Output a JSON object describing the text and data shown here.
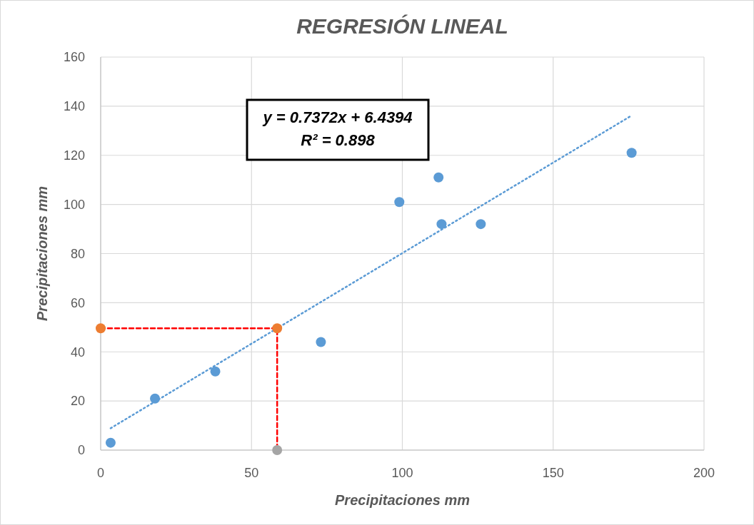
{
  "chart_data": {
    "type": "scatter",
    "title": "REGRESIÓN LINEAL",
    "xlabel": "Precipitaciones mm",
    "ylabel": "Precipitaciones mm",
    "xlim": [
      0,
      200
    ],
    "xticks": [
      0,
      50,
      100,
      150,
      200
    ],
    "ylim": [
      0,
      160
    ],
    "yticks": [
      0,
      20,
      40,
      60,
      80,
      100,
      120,
      140,
      160
    ],
    "grid": true,
    "marker": "circle",
    "annotations": [
      "y = 0.7372x + 6.4394",
      "R² = 0.898"
    ],
    "series": [
      {
        "type": "line",
        "color": "#5b9bd5",
        "line_style": "dotted",
        "marker": "none",
        "x": [
          3.3,
          176
        ],
        "values": [
          8.9,
          136.2
        ]
      },
      {
        "type": "line",
        "color": "#ff0000",
        "line_style": "dashed",
        "marker": "none",
        "x": [
          0,
          58.5,
          58.5
        ],
        "values": [
          49.6,
          49.6,
          0
        ]
      },
      {
        "color": "#5b9bd5",
        "x": [
          3.3,
          18,
          38,
          73,
          99,
          112,
          113,
          126,
          176
        ],
        "values": [
          3,
          21,
          32,
          44,
          101,
          111,
          92,
          92,
          121
        ]
      },
      {
        "type": "scatter",
        "color": "#ed7d31",
        "x": [
          0,
          58.5
        ],
        "values": [
          49.6,
          49.6
        ]
      },
      {
        "type": "scatter",
        "color": "#a5a5a5",
        "x": [
          58.5
        ],
        "values": [
          0
        ]
      }
    ]
  }
}
